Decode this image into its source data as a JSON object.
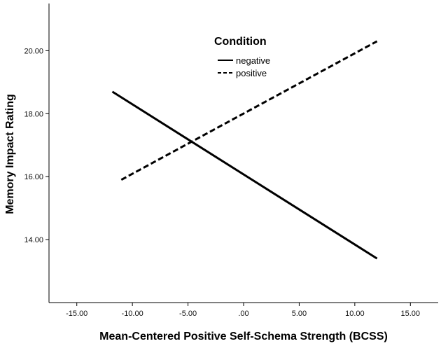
{
  "chart_data": {
    "type": "line",
    "xlabel": "Mean-Centered Positive Self-Schema Strength (BCSS)",
    "ylabel": "Memory Impact Rating",
    "xlim": [
      -17.5,
      17.5
    ],
    "ylim": [
      12.0,
      21.5
    ],
    "x_ticks": [
      -15,
      -10,
      -5,
      0,
      5,
      10,
      15
    ],
    "x_tick_labels": [
      "-15.00",
      "-10.00",
      "-5.00",
      ".00",
      "5.00",
      "10.00",
      "15.00"
    ],
    "y_ticks": [
      14,
      16,
      18,
      20
    ],
    "y_tick_labels": [
      "14.00",
      "16.00",
      "18.00",
      "20.00"
    ],
    "grid": false,
    "legend": {
      "title": "Condition",
      "placement": "top-center"
    },
    "series": [
      {
        "name": "negative",
        "style": "solid",
        "x": [
          -11.8,
          12.0
        ],
        "y": [
          18.7,
          13.4
        ]
      },
      {
        "name": "positive",
        "style": "dashed",
        "x": [
          -11.0,
          12.0
        ],
        "y": [
          15.9,
          20.3
        ]
      }
    ]
  }
}
